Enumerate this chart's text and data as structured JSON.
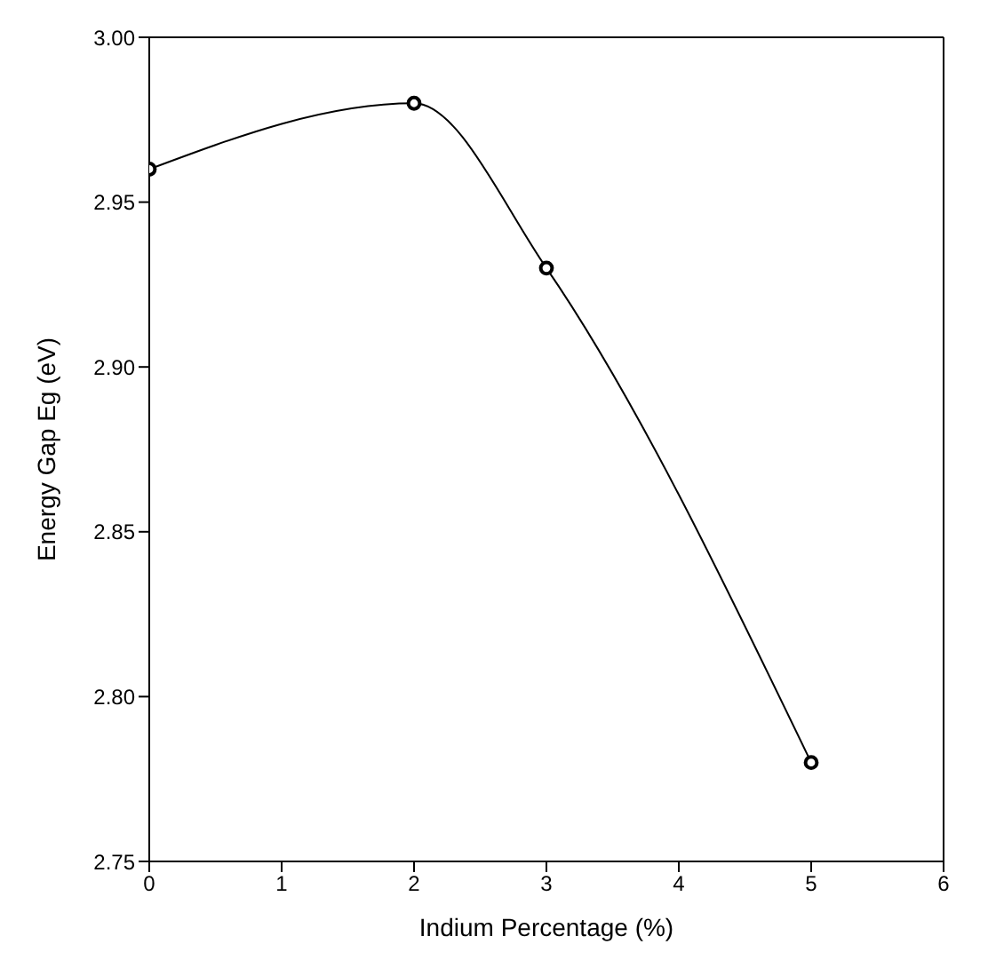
{
  "chart_data": {
    "type": "line",
    "xlabel": "Indium Percentage (%)",
    "ylabel": "Energy Gap Eg (eV)",
    "x": [
      0,
      2,
      3,
      5
    ],
    "series": [
      {
        "color": "#000000",
        "values": [
          2.96,
          2.98,
          2.93,
          2.78
        ]
      }
    ],
    "xlim": [
      0,
      6
    ],
    "xticks": [
      0,
      1,
      2,
      3,
      4,
      5,
      6
    ],
    "ylim": [
      2.75,
      3.0
    ],
    "yticks": [
      2.75,
      {
        "value": 2.8,
        "label": "2.80"
      },
      2.85,
      {
        "value": 2.9,
        "label": "2.90"
      },
      2.95,
      {
        "value": 3.0,
        "label": "3.00"
      }
    ],
    "marker": "circle",
    "line_style": "solid"
  }
}
